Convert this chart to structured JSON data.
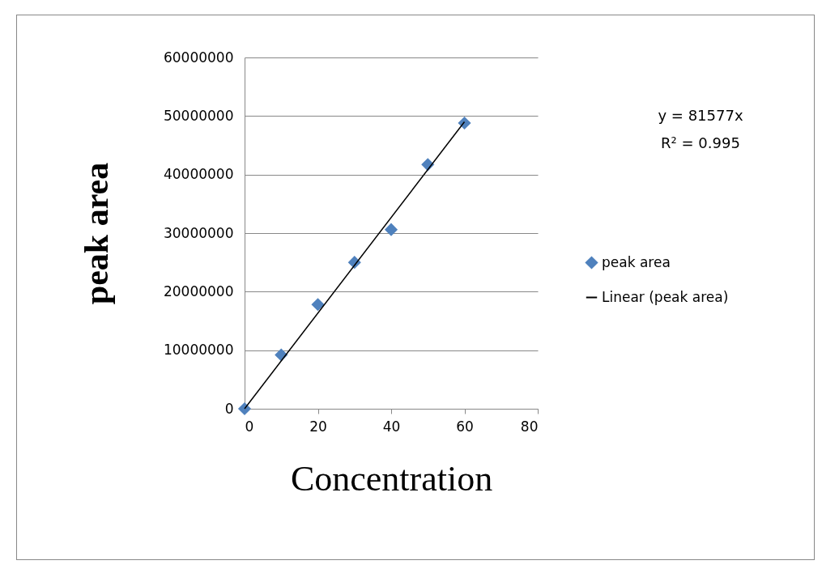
{
  "chart_data": {
    "type": "scatter",
    "xlabel": "Concentration",
    "ylabel": "peak area",
    "x": [
      0,
      10,
      20,
      30,
      40,
      50,
      60
    ],
    "series": [
      {
        "name": "peak area",
        "color": "#4f81bd",
        "marker": "diamond",
        "values": [
          0,
          9200000,
          17800000,
          25000000,
          30600000,
          41700000,
          48800000
        ]
      },
      {
        "name": "Linear (peak area)",
        "type": "line",
        "color": "#000000",
        "x": [
          0,
          60
        ],
        "values": [
          0,
          49000000
        ]
      }
    ],
    "xlim": [
      0,
      80
    ],
    "xticks": [
      0,
      20,
      40,
      60,
      80
    ],
    "ylim": [
      0,
      60000000
    ],
    "yticks": [
      0,
      10000000,
      20000000,
      30000000,
      40000000,
      50000000,
      60000000
    ],
    "grid": "y",
    "legend": "right",
    "annotations": [
      "y = 81577x",
      "R² = 0.995"
    ]
  }
}
